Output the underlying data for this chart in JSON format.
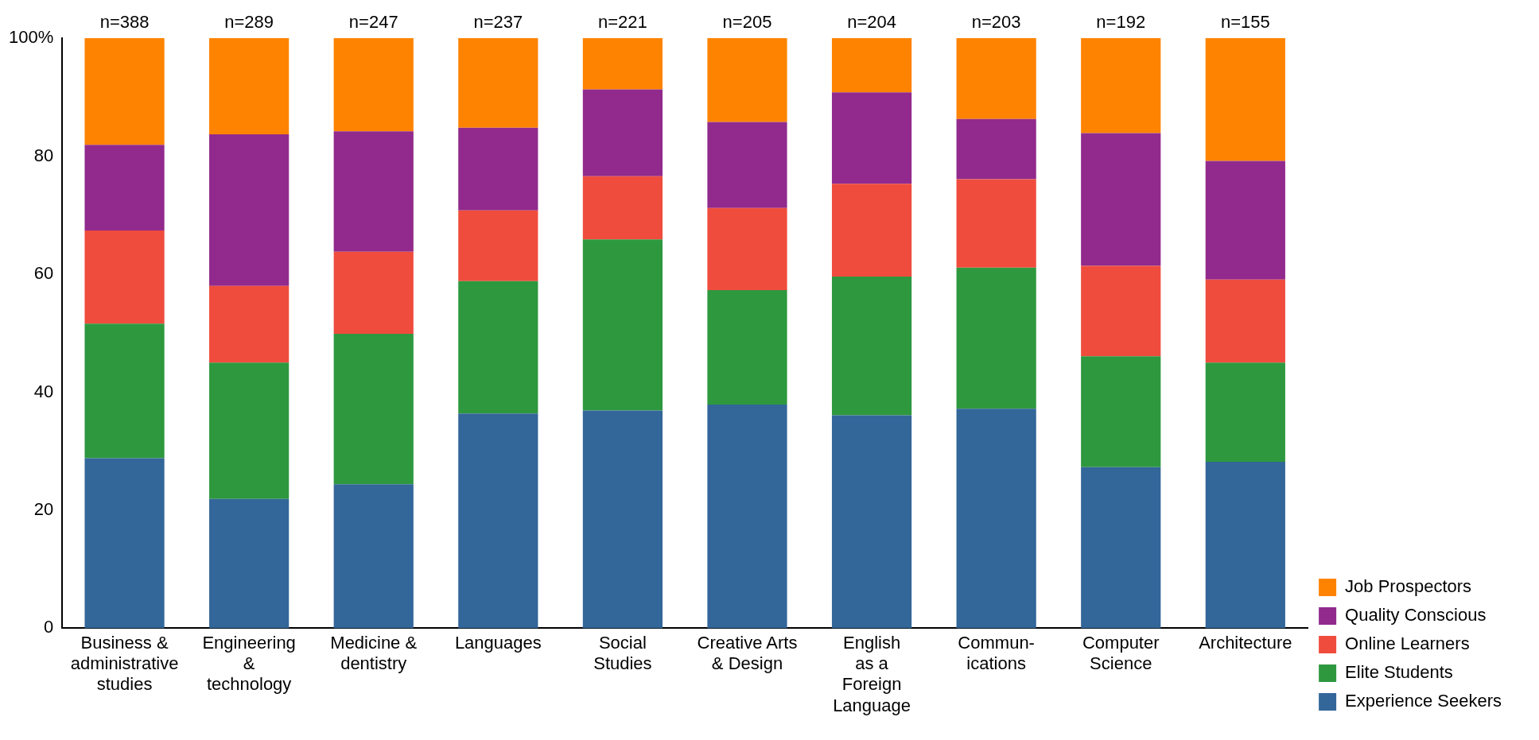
{
  "chart_data": {
    "type": "bar",
    "stacked": true,
    "categories": [
      "Business &\nadministrative\nstudies",
      "Engineering\n&\ntechnology",
      "Medicine &\ndentistry",
      "Languages",
      "Social\nStudies",
      "Creative Arts\n& Design",
      "English\nas a\nForeign\nLanguage",
      "Commun-\nications",
      "Computer\nScience",
      "Architecture"
    ],
    "series": [
      {
        "name": "Experience Seekers",
        "color": "#336699",
        "values": [
          28.8,
          21.9,
          24.4,
          36.4,
          36.9,
          37.9,
          36.1,
          37.2,
          27.3,
          28.2
        ]
      },
      {
        "name": "Elite Students",
        "color": "#2e983f",
        "values": [
          22.8,
          23.1,
          25.5,
          22.4,
          29.0,
          19.4,
          23.5,
          23.9,
          18.8,
          16.8
        ]
      },
      {
        "name": "Online Learners",
        "color": "#ef4c3d",
        "values": [
          15.8,
          13.0,
          13.9,
          12.0,
          10.7,
          13.9,
          15.7,
          15.0,
          15.3,
          14.1
        ]
      },
      {
        "name": "Quality Conscious",
        "color": "#912a8c",
        "values": [
          14.5,
          25.7,
          20.4,
          14.0,
          14.7,
          14.6,
          15.5,
          10.2,
          22.5,
          20.1
        ]
      },
      {
        "name": "Job Prospectors",
        "color": "#fe8300",
        "values": [
          18.1,
          16.3,
          15.8,
          15.2,
          8.7,
          14.2,
          9.2,
          13.7,
          16.1,
          20.8
        ]
      }
    ],
    "ylim": [
      0,
      100
    ],
    "yticks": [
      0,
      20,
      40,
      60,
      80,
      {
        "value": 100,
        "label": "100%"
      }
    ],
    "grid": false,
    "legend": "bottom right",
    "annotations": [
      "n=388",
      "n=289",
      "n=247",
      "n=237",
      "n=221",
      "n=205",
      "n=204",
      "n=203",
      "n=192",
      "n=155"
    ]
  }
}
